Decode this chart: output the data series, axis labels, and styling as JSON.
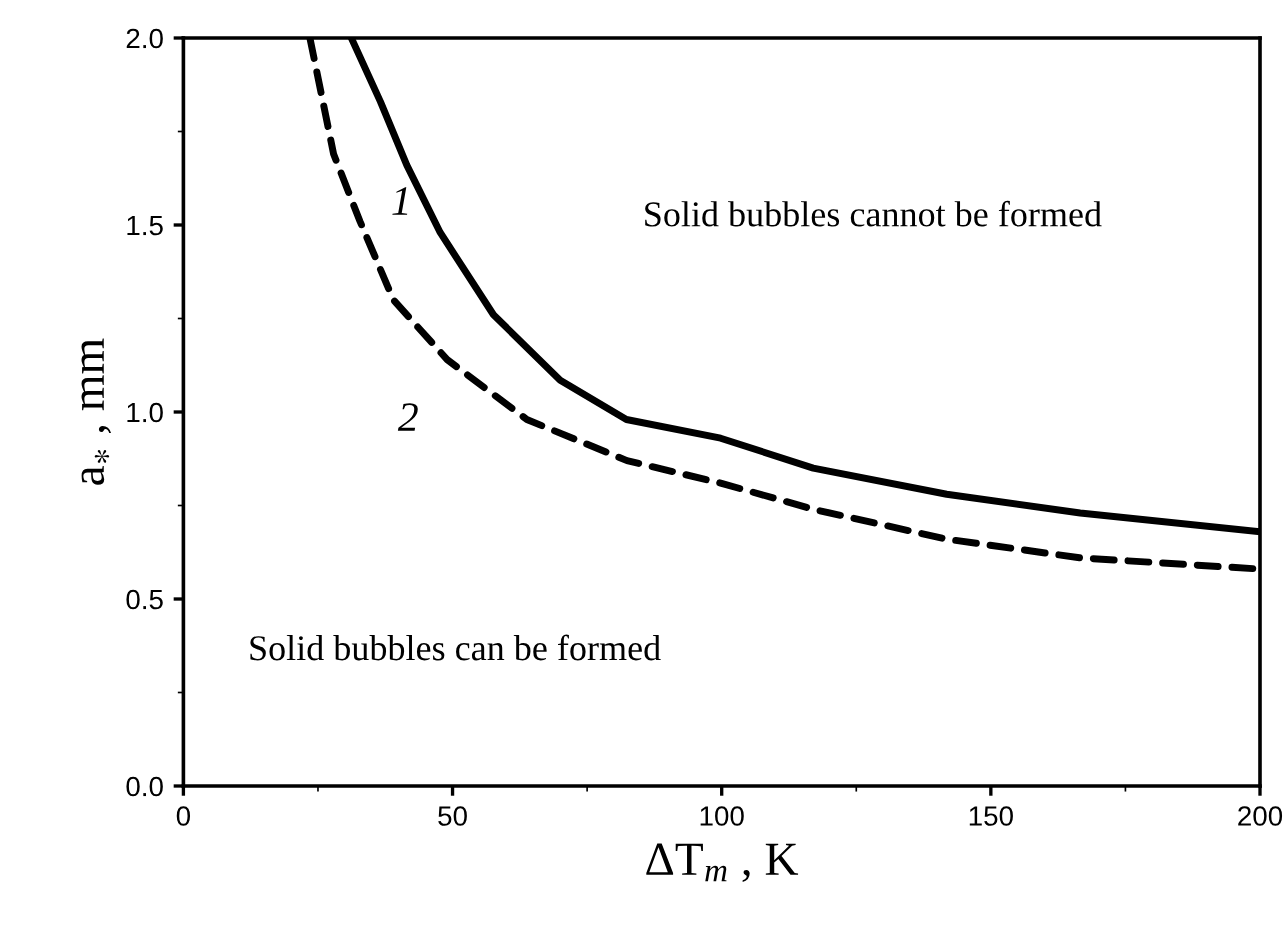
{
  "chart_data": {
    "type": "line",
    "xlabel": "ΔT$_{m}$ , K",
    "ylabel": "a$_{∗}$ , mm",
    "xlim": [
      0,
      200
    ],
    "ylim": [
      0,
      2.0
    ],
    "xticks": [
      0,
      50,
      100,
      150,
      200
    ],
    "yticks": [
      {
        "value": 0,
        "label": "0.0"
      },
      0.5,
      {
        "value": 1,
        "label": "1.0"
      },
      1.5,
      {
        "value": 2,
        "label": "2.0"
      }
    ],
    "grid": false,
    "legend": false,
    "marker": "none",
    "series": [
      {
        "name": "1",
        "color": "#000000",
        "line_style": "solid",
        "x": [
          31.2,
          36.6,
          41.5,
          47.7,
          57.6,
          70,
          82.3,
          99.8,
          117,
          141.8,
          166.6,
          200
        ],
        "values": [
          2.0,
          1.83,
          1.66,
          1.48,
          1.26,
          1.085,
          0.98,
          0.93,
          0.85,
          0.78,
          0.73,
          0.68
        ]
      },
      {
        "name": "2",
        "color": "#000000",
        "line_style": "dashed",
        "x": [
          23.5,
          27.9,
          32.8,
          39,
          49,
          63.8,
          82.4,
          99.8,
          117,
          141.8,
          166.6,
          200
        ],
        "values": [
          2.0,
          1.69,
          1.51,
          1.3,
          1.14,
          0.98,
          0.87,
          0.81,
          0.74,
          0.66,
          0.61,
          0.58
        ]
      }
    ],
    "annotations": [
      "Solid bubbles cannot be formed",
      "Solid bubbles can be formed"
    ]
  }
}
